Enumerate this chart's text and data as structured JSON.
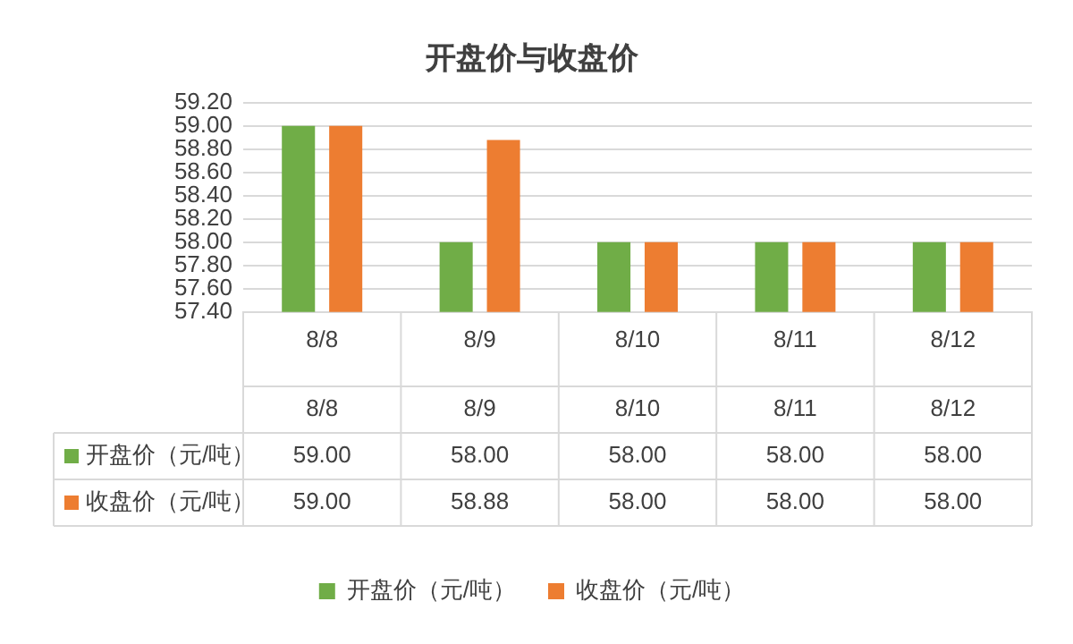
{
  "chart_data": {
    "type": "bar",
    "title": "开盘价与收盘价",
    "categories": [
      "8/8",
      "8/9",
      "8/10",
      "8/11",
      "8/12"
    ],
    "series": [
      {
        "name": "开盘价（元/吨）",
        "color": "#70ad47",
        "values": [
          59.0,
          58.0,
          58.0,
          58.0,
          58.0
        ],
        "value_labels": [
          "59.00",
          "58.00",
          "58.00",
          "58.00",
          "58.00"
        ]
      },
      {
        "name": "收盘价（元/吨）",
        "color": "#ed7d31",
        "values": [
          59.0,
          58.88,
          58.0,
          58.0,
          58.0
        ],
        "value_labels": [
          "59.00",
          "58.88",
          "58.00",
          "58.00",
          "58.00"
        ]
      }
    ],
    "ylim": [
      57.4,
      59.2
    ],
    "yticks": [
      {
        "value": 57.4,
        "label": "57.40"
      },
      {
        "value": 57.6,
        "label": "57.60"
      },
      {
        "value": 57.8,
        "label": "57.80"
      },
      {
        "value": 58.0,
        "label": "58.00"
      },
      {
        "value": 58.2,
        "label": "58.20"
      },
      {
        "value": 58.4,
        "label": "58.40"
      },
      {
        "value": 58.6,
        "label": "58.60"
      },
      {
        "value": 58.8,
        "label": "58.80"
      },
      {
        "value": 59.0,
        "label": "59.00"
      },
      {
        "value": 59.2,
        "label": "59.20"
      }
    ],
    "grid": "y",
    "legend": "bottom"
  }
}
